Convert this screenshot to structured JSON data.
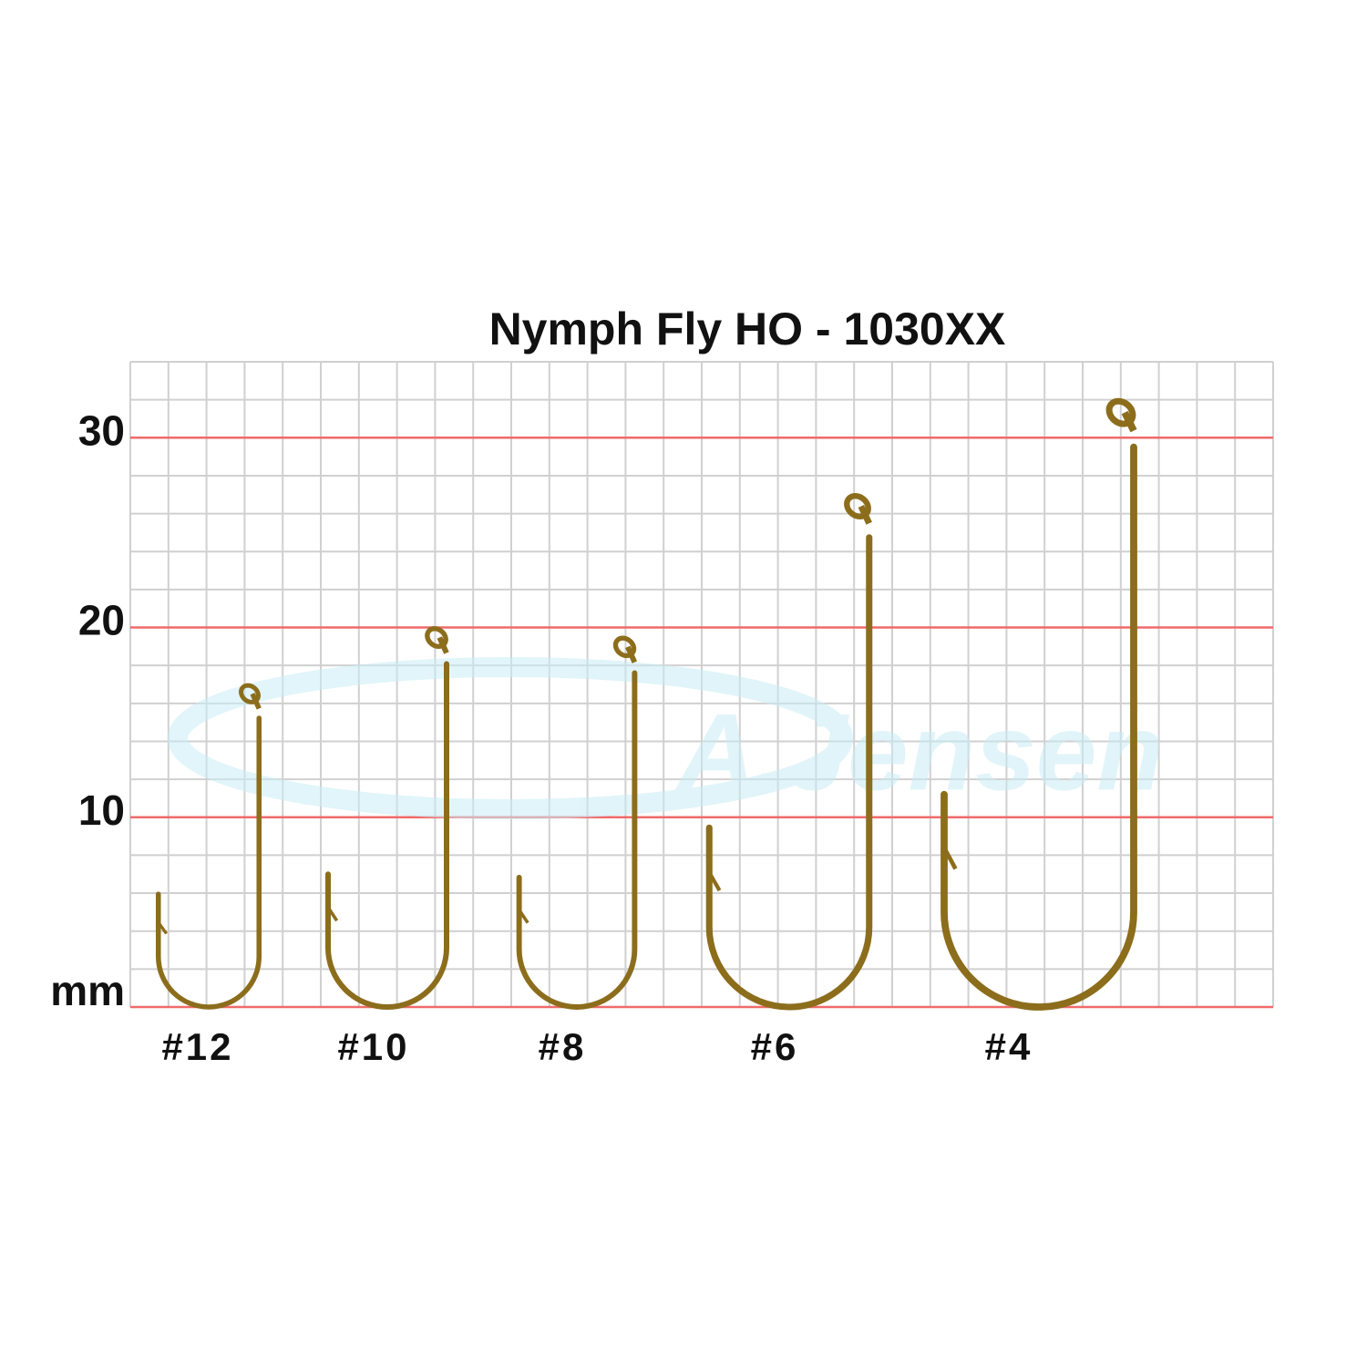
{
  "chart_data": {
    "type": "hook",
    "title": "Nymph Fly HO - 1030XX",
    "watermark": "A.Jensen",
    "categories": [
      "#12",
      "#10",
      "#8",
      "#6",
      "#4"
    ],
    "values": [
      17,
      20,
      19.5,
      27,
      32
    ],
    "color": "#8c6d1c",
    "ylim": [
      0,
      34
    ],
    "yticks": [
      {
        "value": 0,
        "label": "mm"
      },
      10,
      20,
      30
    ],
    "grid": true
  }
}
